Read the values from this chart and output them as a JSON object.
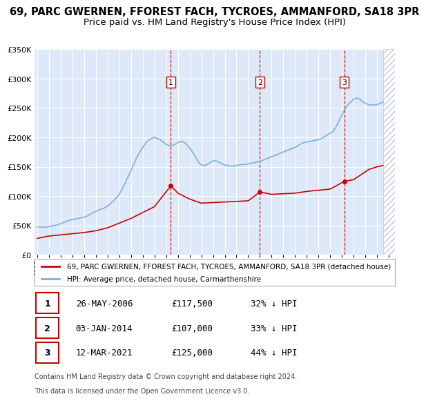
{
  "title": "69, PARC GWERNEN, FFOREST FACH, TYCROES, AMMANFORD, SA18 3PR",
  "subtitle": "Price paid vs. HM Land Registry's House Price Index (HPI)",
  "title_fontsize": 10.5,
  "subtitle_fontsize": 9.5,
  "background_color": "#ffffff",
  "plot_bg_color": "#dde8f8",
  "grid_color": "#ffffff",
  "ylim": [
    0,
    350000
  ],
  "yticks": [
    0,
    50000,
    100000,
    150000,
    200000,
    250000,
    300000,
    350000
  ],
  "xlim_start": 1994.75,
  "xlim_end": 2025.5,
  "hpi_color": "#7ab0e0",
  "price_color": "#cc0000",
  "vline_color": "#cc0000",
  "hatch_color": "#c0c8d8",
  "hatch_start": 2024.5,
  "transactions": [
    {
      "date_num": 2006.4,
      "price": 117500,
      "label": "1"
    },
    {
      "date_num": 2014.0,
      "price": 107000,
      "label": "2"
    },
    {
      "date_num": 2021.2,
      "price": 125000,
      "label": "3"
    }
  ],
  "transaction_table": [
    {
      "num": "1",
      "date": "26-MAY-2006",
      "price": "£117,500",
      "pct": "32% ↓ HPI"
    },
    {
      "num": "2",
      "date": "03-JAN-2014",
      "price": "£107,000",
      "pct": "33% ↓ HPI"
    },
    {
      "num": "3",
      "date": "12-MAR-2021",
      "price": "£125,000",
      "pct": "44% ↓ HPI"
    }
  ],
  "legend_line1": "69, PARC GWERNEN, FFOREST FACH, TYCROES, AMMANFORD, SA18 3PR (detached house)",
  "legend_line2": "HPI: Average price, detached house, Carmarthenshire",
  "footer1": "Contains HM Land Registry data © Crown copyright and database right 2024.",
  "footer2": "This data is licensed under the Open Government Licence v3.0.",
  "hpi_data_x": [
    1995.0,
    1995.25,
    1995.5,
    1995.75,
    1996.0,
    1996.25,
    1996.5,
    1996.75,
    1997.0,
    1997.25,
    1997.5,
    1997.75,
    1998.0,
    1998.25,
    1998.5,
    1998.75,
    1999.0,
    1999.25,
    1999.5,
    1999.75,
    2000.0,
    2000.25,
    2000.5,
    2000.75,
    2001.0,
    2001.25,
    2001.5,
    2001.75,
    2002.0,
    2002.25,
    2002.5,
    2002.75,
    2003.0,
    2003.25,
    2003.5,
    2003.75,
    2004.0,
    2004.25,
    2004.5,
    2004.75,
    2005.0,
    2005.25,
    2005.5,
    2005.75,
    2006.0,
    2006.25,
    2006.5,
    2006.75,
    2007.0,
    2007.25,
    2007.5,
    2007.75,
    2008.0,
    2008.25,
    2008.5,
    2008.75,
    2009.0,
    2009.25,
    2009.5,
    2009.75,
    2010.0,
    2010.25,
    2010.5,
    2010.75,
    2011.0,
    2011.25,
    2011.5,
    2011.75,
    2012.0,
    2012.25,
    2012.5,
    2012.75,
    2013.0,
    2013.25,
    2013.5,
    2013.75,
    2014.0,
    2014.25,
    2014.5,
    2014.75,
    2015.0,
    2015.25,
    2015.5,
    2015.75,
    2016.0,
    2016.25,
    2016.5,
    2016.75,
    2017.0,
    2017.25,
    2017.5,
    2017.75,
    2018.0,
    2018.25,
    2018.5,
    2018.75,
    2019.0,
    2019.25,
    2019.5,
    2019.75,
    2020.0,
    2020.25,
    2020.5,
    2020.75,
    2021.0,
    2021.25,
    2021.5,
    2021.75,
    2022.0,
    2022.25,
    2022.5,
    2022.75,
    2023.0,
    2023.25,
    2023.5,
    2023.75,
    2024.0,
    2024.25,
    2024.5
  ],
  "hpi_data_y": [
    48000,
    47500,
    47000,
    47500,
    48000,
    49000,
    50000,
    51000,
    53000,
    55000,
    57000,
    59000,
    60000,
    61000,
    62000,
    63000,
    64000,
    66000,
    69000,
    72000,
    74000,
    76000,
    78000,
    80000,
    83000,
    87000,
    92000,
    97000,
    103000,
    112000,
    122000,
    133000,
    143000,
    155000,
    166000,
    175000,
    183000,
    190000,
    195000,
    198000,
    200000,
    198000,
    196000,
    192000,
    188000,
    186000,
    186000,
    188000,
    191000,
    193000,
    192000,
    188000,
    182000,
    175000,
    167000,
    158000,
    153000,
    152000,
    154000,
    157000,
    160000,
    160000,
    158000,
    155000,
    153000,
    152000,
    151000,
    151000,
    152000,
    153000,
    154000,
    154000,
    155000,
    156000,
    157000,
    158000,
    159000,
    161000,
    163000,
    165000,
    167000,
    169000,
    171000,
    173000,
    175000,
    177000,
    179000,
    181000,
    183000,
    186000,
    189000,
    191000,
    192000,
    193000,
    194000,
    195000,
    196000,
    198000,
    201000,
    204000,
    207000,
    210000,
    218000,
    228000,
    238000,
    248000,
    255000,
    260000,
    265000,
    267000,
    265000,
    261000,
    258000,
    256000,
    255000,
    255000,
    256000,
    258000,
    260000
  ],
  "price_paid_x": [
    1995.0,
    1995.5,
    1996.0,
    1997.0,
    1998.0,
    1999.0,
    2000.0,
    2001.0,
    2002.0,
    2003.0,
    2004.0,
    2005.0,
    2006.4,
    2007.0,
    2008.0,
    2009.0,
    2010.0,
    2011.0,
    2012.0,
    2013.0,
    2014.0,
    2015.0,
    2016.0,
    2017.0,
    2018.0,
    2019.0,
    2020.0,
    2021.2,
    2022.0,
    2022.75,
    2023.25,
    2024.0,
    2024.5
  ],
  "price_paid_y": [
    28000,
    30000,
    32000,
    34000,
    36000,
    38000,
    41000,
    46000,
    54000,
    62000,
    72000,
    82000,
    117500,
    105000,
    95000,
    88000,
    89000,
    90000,
    91000,
    92000,
    107000,
    103000,
    104000,
    105000,
    108000,
    110000,
    112000,
    125000,
    128000,
    138000,
    145000,
    150000,
    152000
  ]
}
